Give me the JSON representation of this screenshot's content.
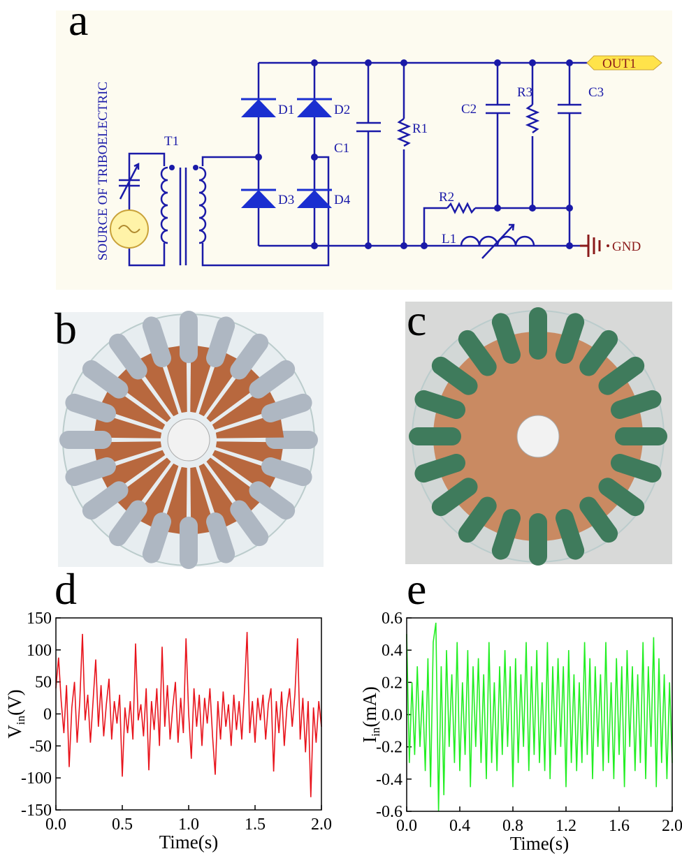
{
  "panel_labels": [
    "a",
    "b",
    "c",
    "d",
    "e"
  ],
  "circuit": {
    "source": "SOURCE OF TRIBOELECTRIC",
    "transformer": "T1",
    "diodes": [
      "D1",
      "D2",
      "D3",
      "D4"
    ],
    "capacitors": [
      "C1",
      "C2",
      "C3"
    ],
    "resistors": [
      "R1",
      "R2",
      "R3"
    ],
    "inductor": "L1",
    "output": "OUT1",
    "ground": "GND"
  },
  "chart_data": [
    {
      "type": "line",
      "xlabel": "Time(s)",
      "ylabel": {
        "main": "V",
        "sub": "in",
        "unit": "(V)"
      },
      "color": "#e8141c",
      "xlim": [
        0,
        2
      ],
      "xticks": [
        {
          "value": 0,
          "label": "0.0"
        },
        0.5,
        {
          "value": 1,
          "label": "1.0"
        },
        1.5,
        {
          "value": 2,
          "label": "2.0"
        }
      ],
      "ylim": [
        -150,
        150
      ],
      "yticks": [
        150,
        100,
        50,
        0,
        -50,
        -100,
        -150
      ],
      "x": [
        0,
        0.02,
        0.04,
        0.06,
        0.08,
        0.1,
        0.12,
        0.14,
        0.16,
        0.18,
        0.2,
        0.22,
        0.24,
        0.26,
        0.28,
        0.3,
        0.32,
        0.34,
        0.36,
        0.38,
        0.4,
        0.42,
        0.44,
        0.46,
        0.48,
        0.5,
        0.52,
        0.54,
        0.56,
        0.58,
        0.6,
        0.62,
        0.64,
        0.66,
        0.68,
        0.7,
        0.72,
        0.74,
        0.76,
        0.78,
        0.8,
        0.82,
        0.84,
        0.86,
        0.88,
        0.9,
        0.92,
        0.94,
        0.96,
        0.98,
        1,
        1.02,
        1.04,
        1.06,
        1.08,
        1.1,
        1.12,
        1.14,
        1.16,
        1.18,
        1.2,
        1.22,
        1.24,
        1.26,
        1.28,
        1.3,
        1.32,
        1.34,
        1.36,
        1.38,
        1.4,
        1.42,
        1.44,
        1.46,
        1.48,
        1.5,
        1.52,
        1.54,
        1.56,
        1.58,
        1.6,
        1.62,
        1.64,
        1.66,
        1.68,
        1.7,
        1.72,
        1.74,
        1.76,
        1.78,
        1.8,
        1.82,
        1.84,
        1.86,
        1.88,
        1.9,
        1.92,
        1.94,
        1.96,
        1.98,
        2
      ],
      "values": [
        40,
        88,
        20,
        -30,
        45,
        -83,
        10,
        50,
        -45,
        20,
        125,
        -10,
        30,
        -45,
        20,
        85,
        -20,
        45,
        -35,
        15,
        55,
        -40,
        20,
        -15,
        30,
        -98,
        10,
        -30,
        20,
        -40,
        110,
        -10,
        15,
        -35,
        40,
        -88,
        20,
        -25,
        40,
        -50,
        105,
        -20,
        45,
        -40,
        10,
        50,
        -45,
        25,
        -30,
        118,
        0,
        -70,
        40,
        -20,
        30,
        -50,
        25,
        -15,
        40,
        -35,
        -95,
        20,
        -40,
        35,
        -20,
        15,
        -50,
        30,
        -25,
        20,
        -40,
        35,
        128,
        -30,
        20,
        -45,
        25,
        -10,
        30,
        -40,
        15,
        40,
        -90,
        20,
        -30,
        35,
        -50,
        10,
        40,
        -20,
        30,
        118,
        -40,
        25,
        -60,
        20,
        -130,
        10,
        -45,
        20,
        -20
      ]
    },
    {
      "type": "line",
      "xlabel": "Time(s)",
      "ylabel": {
        "main": "I",
        "sub": "in",
        "unit": "(mA)"
      },
      "color": "#22ee22",
      "xlim": [
        0,
        2
      ],
      "xticks": [
        {
          "value": 0,
          "label": "0.0"
        },
        0.4,
        0.8,
        1.2,
        1.6,
        {
          "value": 2,
          "label": "2.0"
        }
      ],
      "ylim": [
        -0.6,
        0.6
      ],
      "yticks": [
        0.6,
        0.4,
        0.2,
        {
          "value": 0,
          "label": "0.0"
        },
        -0.2,
        -0.4,
        -0.6
      ],
      "x": [
        0,
        0.02,
        0.04,
        0.06,
        0.08,
        0.1,
        0.12,
        0.14,
        0.16,
        0.18,
        0.2,
        0.22,
        0.24,
        0.26,
        0.28,
        0.3,
        0.32,
        0.34,
        0.36,
        0.38,
        0.4,
        0.42,
        0.44,
        0.46,
        0.48,
        0.5,
        0.52,
        0.54,
        0.56,
        0.58,
        0.6,
        0.62,
        0.64,
        0.66,
        0.68,
        0.7,
        0.72,
        0.74,
        0.76,
        0.78,
        0.8,
        0.82,
        0.84,
        0.86,
        0.88,
        0.9,
        0.92,
        0.94,
        0.96,
        0.98,
        1,
        1.02,
        1.04,
        1.06,
        1.08,
        1.1,
        1.12,
        1.14,
        1.16,
        1.18,
        1.2,
        1.22,
        1.24,
        1.26,
        1.28,
        1.3,
        1.32,
        1.34,
        1.36,
        1.38,
        1.4,
        1.42,
        1.44,
        1.46,
        1.48,
        1.5,
        1.52,
        1.54,
        1.56,
        1.58,
        1.6,
        1.62,
        1.64,
        1.66,
        1.68,
        1.7,
        1.72,
        1.74,
        1.76,
        1.78,
        1.8,
        1.82,
        1.84,
        1.86,
        1.88,
        1.9,
        1.92,
        1.94,
        1.96,
        1.98,
        2
      ],
      "values": [
        0.5,
        -0.3,
        0.2,
        -0.25,
        0.3,
        -0.2,
        0.15,
        -0.35,
        0.35,
        -0.45,
        0.45,
        0.57,
        -0.6,
        0.3,
        -0.5,
        0.4,
        -0.2,
        0.25,
        -0.3,
        0.45,
        -0.35,
        0.2,
        -0.25,
        0.4,
        -0.45,
        0.3,
        -0.2,
        0.35,
        -0.3,
        0.25,
        -0.4,
        0.45,
        -0.3,
        0.2,
        -0.35,
        0.3,
        -0.25,
        0.4,
        -0.2,
        0.3,
        -0.45,
        0.35,
        -0.3,
        0.25,
        -0.2,
        0.45,
        -0.35,
        0.3,
        -0.25,
        0.4,
        -0.3,
        0.2,
        -0.35,
        0.45,
        -0.4,
        0.3,
        -0.25,
        0.35,
        -0.2,
        0.3,
        -0.45,
        0.4,
        -0.3,
        0.25,
        -0.35,
        0.2,
        -0.3,
        0.45,
        -0.25,
        0.35,
        -0.4,
        0.3,
        -0.2,
        0.25,
        -0.35,
        0.45,
        -0.3,
        0.2,
        -0.4,
        0.35,
        -0.25,
        0.3,
        -0.45,
        0.4,
        -0.2,
        0.3,
        -0.35,
        0.25,
        -0.3,
        0.45,
        -0.4,
        0.3,
        -0.2,
        0.48,
        -0.45,
        0.35,
        -0.3,
        0.25,
        -0.4,
        0.2,
        -0.3
      ]
    }
  ]
}
